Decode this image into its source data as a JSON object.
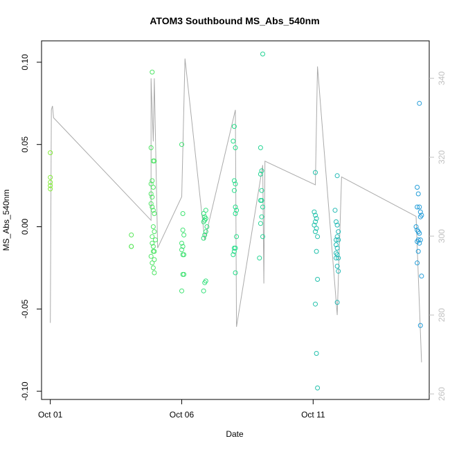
{
  "chart_data": {
    "type": "scatter",
    "title": "ATOM3 Southbound MS_Abs_540nm",
    "xlabel": "Date",
    "ylabel": "MS_Abs_540nm",
    "x_ticks": [
      "Oct 01",
      "Oct 06",
      "Oct 11"
    ],
    "y_ticks": [
      "-0.10",
      "-0.05",
      "0.00",
      "0.05",
      "0.10"
    ],
    "y_right_ticks": [
      "260",
      "280",
      "300",
      "320",
      "340"
    ],
    "xlim": [
      "2016-09-30T16:00",
      "2016-10-15T10:00"
    ],
    "ylim": [
      -0.105,
      0.113
    ],
    "ylim_right": [
      258.6,
      349.5
    ],
    "grid": false,
    "colors": {
      "series_main": "#aaaaaa",
      "axis": "#000000",
      "right_axis": "#c0c0c0",
      "points_start": "#88ee33",
      "points_mid": "#22dd88",
      "points_end": "#2299dd"
    },
    "points": [
      {
        "x": "2016-10-01T00:00",
        "y": 0.045
      },
      {
        "x": "2016-10-01T00:00",
        "y": 0.03
      },
      {
        "x": "2016-10-01T00:00",
        "y": 0.027
      },
      {
        "x": "2016-10-01T00:00",
        "y": 0.025
      },
      {
        "x": "2016-10-01T00:00",
        "y": 0.023
      },
      {
        "x": "2016-10-04T02:00",
        "y": -0.005
      },
      {
        "x": "2016-10-04T02:00",
        "y": -0.012
      },
      {
        "x": "2016-10-04T02:00",
        "y": -0.012
      },
      {
        "x": "2016-10-04T20:00",
        "y": 0.048
      },
      {
        "x": "2016-10-04T21:00",
        "y": 0.094
      },
      {
        "x": "2016-10-04T22:00",
        "y": 0.04
      },
      {
        "x": "2016-10-04T23:00",
        "y": 0.04
      },
      {
        "x": "2016-10-04T21:00",
        "y": 0.028
      },
      {
        "x": "2016-10-04T20:00",
        "y": 0.026
      },
      {
        "x": "2016-10-04T22:00",
        "y": 0.024
      },
      {
        "x": "2016-10-04T20:00",
        "y": 0.02
      },
      {
        "x": "2016-10-04T21:00",
        "y": 0.018
      },
      {
        "x": "2016-10-04T20:00",
        "y": 0.014
      },
      {
        "x": "2016-10-04T21:00",
        "y": 0.012
      },
      {
        "x": "2016-10-04T22:00",
        "y": 0.01
      },
      {
        "x": "2016-10-04T23:00",
        "y": 0.008
      },
      {
        "x": "2016-10-04T22:00",
        "y": 0.0
      },
      {
        "x": "2016-10-04T23:00",
        "y": -0.003
      },
      {
        "x": "2016-10-04T21:00",
        "y": -0.006
      },
      {
        "x": "2016-10-05T00:00",
        "y": -0.008
      },
      {
        "x": "2016-10-04T21:00",
        "y": -0.01
      },
      {
        "x": "2016-10-04T22:00",
        "y": -0.012
      },
      {
        "x": "2016-10-04T23:00",
        "y": -0.015
      },
      {
        "x": "2016-10-04T22:00",
        "y": -0.015
      },
      {
        "x": "2016-10-04T20:00",
        "y": -0.018
      },
      {
        "x": "2016-10-04T21:00",
        "y": -0.022
      },
      {
        "x": "2016-10-04T23:00",
        "y": -0.02
      },
      {
        "x": "2016-10-04T22:00",
        "y": -0.025
      },
      {
        "x": "2016-10-04T23:00",
        "y": -0.028
      },
      {
        "x": "2016-10-06T00:00",
        "y": 0.05
      },
      {
        "x": "2016-10-06T01:00",
        "y": 0.008
      },
      {
        "x": "2016-10-06T01:00",
        "y": -0.002
      },
      {
        "x": "2016-10-06T02:00",
        "y": -0.005
      },
      {
        "x": "2016-10-06T00:00",
        "y": -0.01
      },
      {
        "x": "2016-10-06T01:00",
        "y": -0.012
      },
      {
        "x": "2016-10-06T00:00",
        "y": -0.014
      },
      {
        "x": "2016-10-06T01:00",
        "y": -0.017
      },
      {
        "x": "2016-10-06T02:00",
        "y": -0.017
      },
      {
        "x": "2016-10-06T01:00",
        "y": -0.029
      },
      {
        "x": "2016-10-06T02:00",
        "y": -0.029
      },
      {
        "x": "2016-10-06T00:00",
        "y": -0.039
      },
      {
        "x": "2016-10-06T20:00",
        "y": 0.008
      },
      {
        "x": "2016-10-06T21:00",
        "y": 0.006
      },
      {
        "x": "2016-10-06T22:00",
        "y": 0.01
      },
      {
        "x": "2016-10-06T21:00",
        "y": 0.004
      },
      {
        "x": "2016-10-06T22:00",
        "y": 0.005
      },
      {
        "x": "2016-10-06T20:00",
        "y": 0.003
      },
      {
        "x": "2016-10-06T23:00",
        "y": 0.0
      },
      {
        "x": "2016-10-06T22:00",
        "y": -0.003
      },
      {
        "x": "2016-10-06T21:00",
        "y": -0.005
      },
      {
        "x": "2016-10-06T20:00",
        "y": -0.007
      },
      {
        "x": "2016-10-06T22:00",
        "y": -0.033
      },
      {
        "x": "2016-10-06T21:00",
        "y": -0.034
      },
      {
        "x": "2016-10-06T20:00",
        "y": -0.039
      },
      {
        "x": "2016-10-08T00:00",
        "y": 0.061
      },
      {
        "x": "2016-10-07T23:00",
        "y": 0.052
      },
      {
        "x": "2016-10-08T01:00",
        "y": 0.048
      },
      {
        "x": "2016-10-08T00:00",
        "y": 0.028
      },
      {
        "x": "2016-10-08T01:00",
        "y": 0.026
      },
      {
        "x": "2016-10-08T00:00",
        "y": 0.022
      },
      {
        "x": "2016-10-08T01:00",
        "y": 0.012
      },
      {
        "x": "2016-10-08T02:00",
        "y": 0.01
      },
      {
        "x": "2016-10-08T01:00",
        "y": 0.008
      },
      {
        "x": "2016-10-08T02:00",
        "y": -0.006
      },
      {
        "x": "2016-10-08T00:00",
        "y": -0.013
      },
      {
        "x": "2016-10-08T01:00",
        "y": -0.013
      },
      {
        "x": "2016-10-07T23:00",
        "y": -0.017
      },
      {
        "x": "2016-10-08T00:00",
        "y": -0.015
      },
      {
        "x": "2016-10-08T01:00",
        "y": -0.028
      },
      {
        "x": "2016-10-09T02:00",
        "y": 0.105
      },
      {
        "x": "2016-10-09T00:00",
        "y": 0.048
      },
      {
        "x": "2016-10-09T01:00",
        "y": 0.034
      },
      {
        "x": "2016-10-09T00:00",
        "y": 0.032
      },
      {
        "x": "2016-10-09T01:00",
        "y": 0.022
      },
      {
        "x": "2016-10-09T00:00",
        "y": 0.016
      },
      {
        "x": "2016-10-09T01:00",
        "y": 0.016
      },
      {
        "x": "2016-10-09T02:00",
        "y": 0.012
      },
      {
        "x": "2016-10-09T01:00",
        "y": 0.006
      },
      {
        "x": "2016-10-09T00:00",
        "y": 0.002
      },
      {
        "x": "2016-10-09T02:00",
        "y": -0.006
      },
      {
        "x": "2016-10-08T23:00",
        "y": -0.019
      },
      {
        "x": "2016-10-11T02:00",
        "y": 0.033
      },
      {
        "x": "2016-10-11T01:00",
        "y": 0.009
      },
      {
        "x": "2016-10-11T02:00",
        "y": 0.007
      },
      {
        "x": "2016-10-11T03:00",
        "y": 0.005
      },
      {
        "x": "2016-10-11T02:00",
        "y": 0.003
      },
      {
        "x": "2016-10-11T01:00",
        "y": 0.001
      },
      {
        "x": "2016-10-11T03:00",
        "y": -0.001
      },
      {
        "x": "2016-10-11T02:00",
        "y": -0.003
      },
      {
        "x": "2016-10-11T04:00",
        "y": -0.006
      },
      {
        "x": "2016-10-11T03:00",
        "y": -0.015
      },
      {
        "x": "2016-10-11T04:00",
        "y": -0.032
      },
      {
        "x": "2016-10-11T02:00",
        "y": -0.047
      },
      {
        "x": "2016-10-11T03:00",
        "y": -0.077
      },
      {
        "x": "2016-10-11T04:00",
        "y": -0.098
      },
      {
        "x": "2016-10-11T22:00",
        "y": 0.031
      },
      {
        "x": "2016-10-11T20:00",
        "y": 0.01
      },
      {
        "x": "2016-10-11T21:00",
        "y": 0.003
      },
      {
        "x": "2016-10-11T22:00",
        "y": 0.001
      },
      {
        "x": "2016-10-11T23:00",
        "y": -0.003
      },
      {
        "x": "2016-10-11T22:00",
        "y": -0.006
      },
      {
        "x": "2016-10-11T21:00",
        "y": -0.008
      },
      {
        "x": "2016-10-11T23:00",
        "y": -0.008
      },
      {
        "x": "2016-10-11T21:00",
        "y": -0.011
      },
      {
        "x": "2016-10-11T22:00",
        "y": -0.013
      },
      {
        "x": "2016-10-11T21:00",
        "y": -0.016
      },
      {
        "x": "2016-10-11T22:00",
        "y": -0.017
      },
      {
        "x": "2016-10-11T21:00",
        "y": -0.019
      },
      {
        "x": "2016-10-11T23:00",
        "y": -0.019
      },
      {
        "x": "2016-10-11T22:00",
        "y": -0.024
      },
      {
        "x": "2016-10-11T23:00",
        "y": -0.027
      },
      {
        "x": "2016-10-11T22:00",
        "y": -0.046
      },
      {
        "x": "2016-10-15T01:00",
        "y": 0.075
      },
      {
        "x": "2016-10-14T23:00",
        "y": 0.024
      },
      {
        "x": "2016-10-15T00:00",
        "y": 0.02
      },
      {
        "x": "2016-10-14T23:00",
        "y": 0.012
      },
      {
        "x": "2016-10-15T01:00",
        "y": 0.012
      },
      {
        "x": "2016-10-15T02:00",
        "y": 0.009
      },
      {
        "x": "2016-10-15T03:00",
        "y": 0.007
      },
      {
        "x": "2016-10-15T02:00",
        "y": 0.006
      },
      {
        "x": "2016-10-14T22:00",
        "y": 0.0
      },
      {
        "x": "2016-10-14T23:00",
        "y": -0.002
      },
      {
        "x": "2016-10-15T00:00",
        "y": -0.003
      },
      {
        "x": "2016-10-15T01:00",
        "y": -0.004
      },
      {
        "x": "2016-10-15T00:00",
        "y": -0.008
      },
      {
        "x": "2016-10-15T02:00",
        "y": -0.008
      },
      {
        "x": "2016-10-14T23:00",
        "y": -0.009
      },
      {
        "x": "2016-10-15T01:00",
        "y": -0.01
      },
      {
        "x": "2016-10-15T00:00",
        "y": -0.015
      },
      {
        "x": "2016-10-14T23:00",
        "y": -0.022
      },
      {
        "x": "2016-10-15T03:00",
        "y": -0.03
      },
      {
        "x": "2016-10-15T02:00",
        "y": -0.06
      }
    ],
    "line_series": [
      {
        "x": "2016-10-01T00:00",
        "y": 278
      },
      {
        "x": "2016-10-01T01:00",
        "y": 332
      },
      {
        "x": "2016-10-01T02:00",
        "y": 333
      },
      {
        "x": "2016-10-01T03:00",
        "y": 330
      },
      {
        "x": "2016-10-04T20:00",
        "y": 304
      },
      {
        "x": "2016-10-04T20:00",
        "y": 340
      },
      {
        "x": "2016-10-04T22:00",
        "y": 324
      },
      {
        "x": "2016-10-04T23:00",
        "y": 340
      },
      {
        "x": "2016-10-05T02:00",
        "y": 297
      },
      {
        "x": "2016-10-06T00:00",
        "y": 310
      },
      {
        "x": "2016-10-06T03:00",
        "y": 345
      },
      {
        "x": "2016-10-06T21:00",
        "y": 299
      },
      {
        "x": "2016-10-08T01:00",
        "y": 332
      },
      {
        "x": "2016-10-08T02:00",
        "y": 277
      },
      {
        "x": "2016-10-09T02:00",
        "y": 318
      },
      {
        "x": "2016-10-09T03:00",
        "y": 288
      },
      {
        "x": "2016-10-09T04:00",
        "y": 319
      },
      {
        "x": "2016-10-11T02:00",
        "y": 313
      },
      {
        "x": "2016-10-11T04:00",
        "y": 343
      },
      {
        "x": "2016-10-11T22:00",
        "y": 280
      },
      {
        "x": "2016-10-12T02:00",
        "y": 315
      },
      {
        "x": "2016-10-14T22:00",
        "y": 305
      },
      {
        "x": "2016-10-15T03:00",
        "y": 268
      }
    ]
  }
}
